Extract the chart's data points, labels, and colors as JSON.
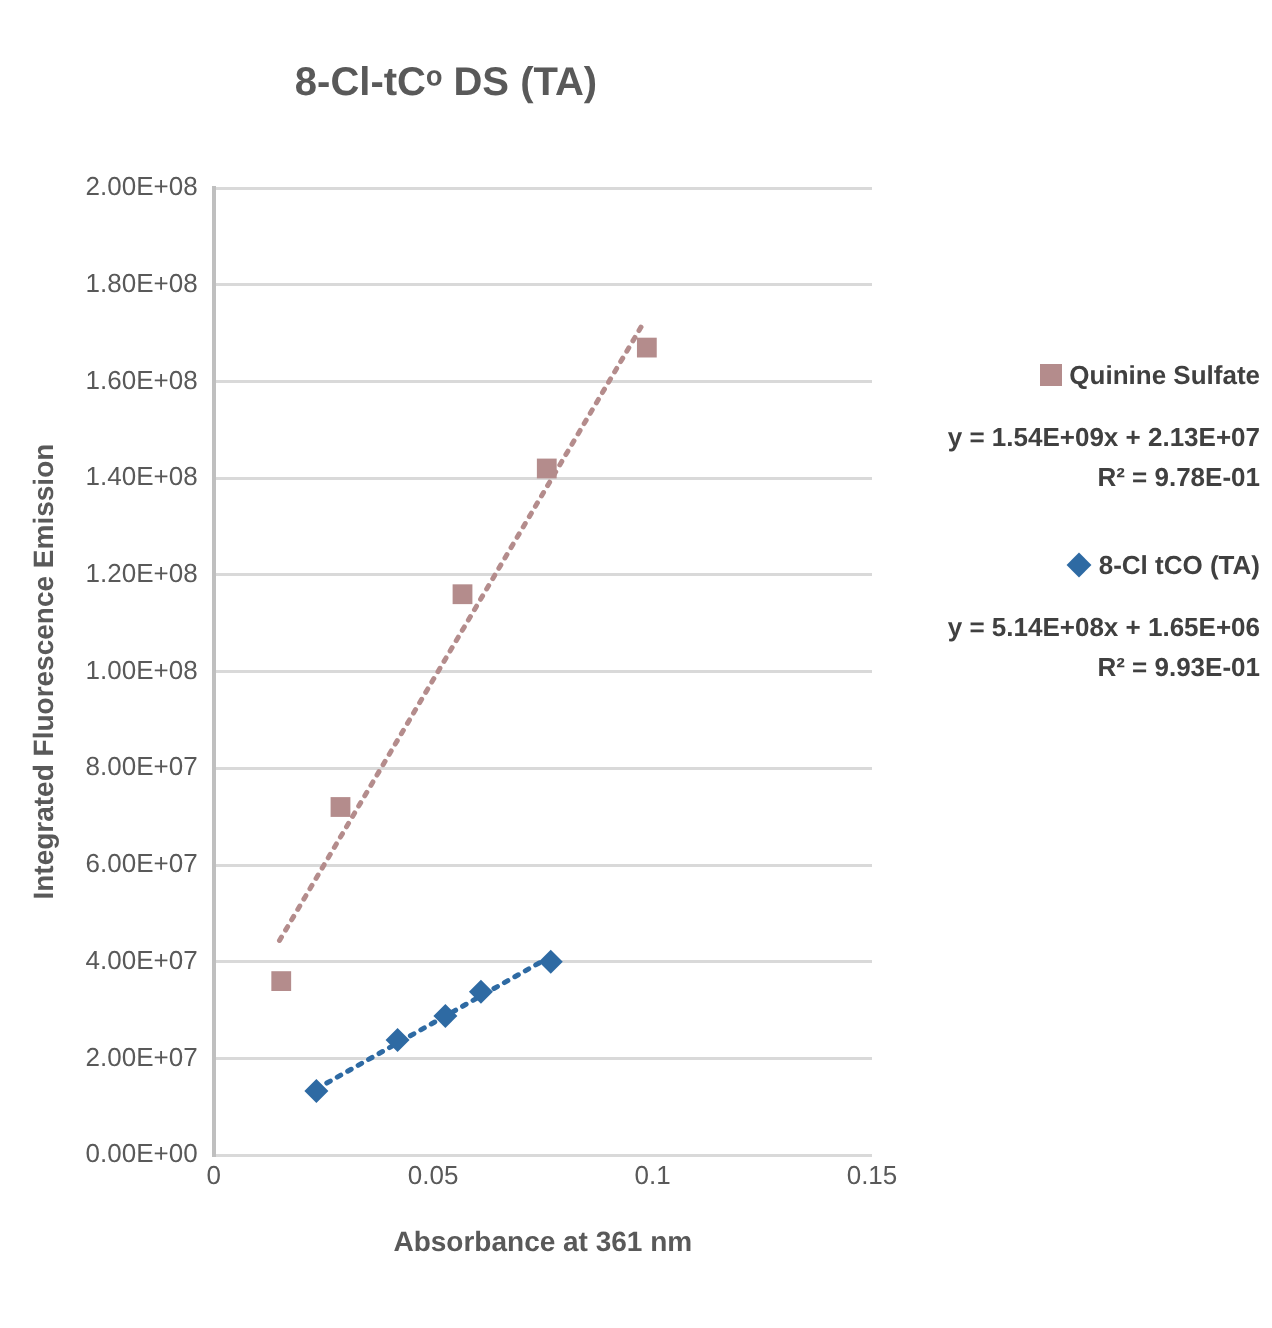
{
  "chart_data": {
    "type": "scatter",
    "title": "8-Cl-tCᵒ DS (TA)",
    "xlabel": "Absorbance at 361 nm",
    "ylabel": "Integrated Fluorescence Emission",
    "xlim": [
      0,
      0.15
    ],
    "xticks": [
      0,
      0.05,
      0.1,
      0.15
    ],
    "ylim": [
      0,
      200000000
    ],
    "yticks": [
      {
        "value": 0,
        "label": "0.00E+00"
      },
      {
        "value": 20000000,
        "label": "2.00E+07"
      },
      {
        "value": 40000000,
        "label": "4.00E+07"
      },
      {
        "value": 60000000,
        "label": "6.00E+07"
      },
      {
        "value": 80000000,
        "label": "8.00E+07"
      },
      {
        "value": 100000000,
        "label": "1.00E+08"
      },
      {
        "value": 120000000,
        "label": "1.20E+08"
      },
      {
        "value": 140000000,
        "label": "1.40E+08"
      },
      {
        "value": 160000000,
        "label": "1.60E+08"
      },
      {
        "value": 180000000,
        "label": "1.80E+08"
      },
      {
        "value": 200000000,
        "label": "2.00E+08"
      }
    ],
    "grid": "y",
    "legend": "right",
    "series": [
      {
        "name": "Quinine Sulfate",
        "color": "#b48c8c",
        "marker": "square",
        "x": [
          0.0154,
          0.0289,
          0.0567,
          0.0759,
          0.0987
        ],
        "values": [
          36000000,
          72000000,
          116000000,
          142000000,
          167000000
        ]
      },
      {
        "type": "line",
        "color": "#b48c8c",
        "line_style": "dotted",
        "marker": "none",
        "x": [
          0.015,
          0.098
        ],
        "values": [
          44400000,
          172200000
        ]
      },
      {
        "name": "8-Cl tCO (TA)",
        "color": "#2e6aa3",
        "marker": "diamond",
        "x": [
          0.0234,
          0.0419,
          0.0528,
          0.0609,
          0.0768
        ],
        "values": [
          13300000,
          23800000,
          28800000,
          33800000,
          40000000
        ]
      },
      {
        "type": "line",
        "color": "#2e6aa3",
        "line_style": "dotted",
        "marker": "none",
        "x": [
          0.0234,
          0.0768
        ],
        "values": [
          13700000,
          41100000
        ]
      }
    ],
    "annotations": [
      "y = 1.54E+09x + 2.13E+07\nR² = 9.78E-01",
      "y = 5.14E+08x + 1.65E+06\nR² = 9.93E-01"
    ]
  }
}
